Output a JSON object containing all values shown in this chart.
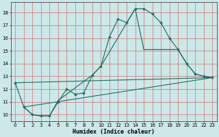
{
  "xlabel": "Humidex (Indice chaleur)",
  "bg_color": "#cce8e8",
  "grid_color": "#d08080",
  "line_color": "#1a6e64",
  "xlim": [
    -0.5,
    23.5
  ],
  "ylim": [
    9.5,
    18.8
  ],
  "xticks": [
    0,
    1,
    2,
    3,
    4,
    5,
    6,
    7,
    8,
    9,
    10,
    11,
    12,
    13,
    14,
    15,
    16,
    17,
    18,
    19,
    20,
    21,
    22,
    23
  ],
  "yticks": [
    10,
    11,
    12,
    13,
    14,
    15,
    16,
    17,
    18
  ],
  "line1_x": [
    0,
    1,
    2,
    3,
    4,
    5,
    6,
    7,
    8,
    9,
    10,
    11,
    12,
    13,
    14,
    15,
    16,
    17,
    18,
    19,
    20,
    21,
    22,
    23
  ],
  "line1_y": [
    12.5,
    10.6,
    10.0,
    9.9,
    9.9,
    11.0,
    12.0,
    11.6,
    11.7,
    13.1,
    13.8,
    16.1,
    17.5,
    17.2,
    18.3,
    18.3,
    17.9,
    17.2,
    16.0,
    15.1,
    14.0,
    13.2,
    13.0,
    12.9
  ],
  "line2_x": [
    1,
    2,
    3,
    4,
    5,
    9,
    10,
    14,
    15,
    19,
    20,
    21,
    22,
    23
  ],
  "line2_y": [
    10.6,
    10.0,
    9.9,
    9.9,
    11.1,
    13.1,
    13.8,
    18.3,
    15.1,
    15.1,
    14.0,
    13.2,
    13.0,
    12.9
  ],
  "line3_x": [
    1,
    23
  ],
  "line3_y": [
    10.6,
    12.9
  ],
  "line4_x": [
    0,
    23
  ],
  "line4_y": [
    12.5,
    12.9
  ]
}
